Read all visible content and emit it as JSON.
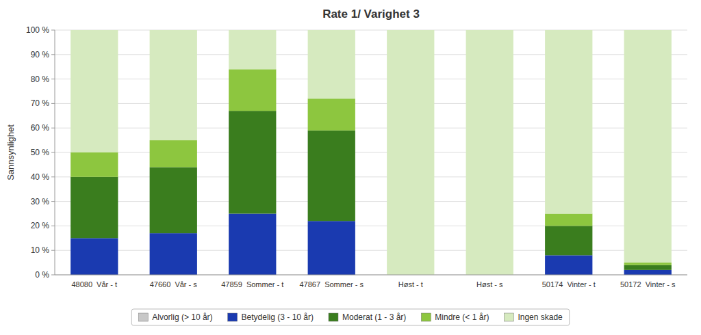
{
  "chart_data": {
    "type": "bar",
    "stacked": true,
    "title": "Rate 1/ Varighet 3",
    "y_label": "Sannsynlighet",
    "categories": [
      "48080  Vår - t",
      "47660  Vår - s",
      "47859  Sommer - t",
      "47867  Sommer - s",
      "Høst - t",
      "Høst - s",
      "50174  Vinter - t",
      "50172  Vinter - s"
    ],
    "series": [
      {
        "name": "Alvorlig (> 10 år)",
        "color": "#c8c8c8",
        "values": [
          0,
          0,
          0,
          0,
          0,
          0,
          0,
          0
        ]
      },
      {
        "name": "Betydelig (3 - 10 år)",
        "color": "#1a3ab0",
        "values": [
          15,
          17,
          25,
          22,
          0,
          0,
          8,
          2
        ]
      },
      {
        "name": "Moderat (1 - 3 år)",
        "color": "#3a7d1e",
        "values": [
          25,
          27,
          42,
          37,
          0,
          0,
          12,
          2
        ]
      },
      {
        "name": "Mindre (< 1 år)",
        "color": "#8dc63f",
        "values": [
          10,
          11,
          17,
          13,
          0,
          0,
          5,
          1
        ]
      },
      {
        "name": "Ingen skade",
        "color": "#d6eabf",
        "values": [
          50,
          45,
          16,
          28,
          100,
          100,
          75,
          95
        ]
      }
    ],
    "ylim": [
      0,
      100
    ],
    "yticks": [
      {
        "value": 0,
        "label": "0 %"
      },
      {
        "value": 10,
        "label": "10 %"
      },
      {
        "value": 20,
        "label": "20 %"
      },
      {
        "value": 30,
        "label": "30 %"
      },
      {
        "value": 40,
        "label": "40 %"
      },
      {
        "value": 50,
        "label": "50 %"
      },
      {
        "value": 60,
        "label": "60 %"
      },
      {
        "value": 70,
        "label": "70 %"
      },
      {
        "value": 80,
        "label": "80 %"
      },
      {
        "value": 90,
        "label": "90 %"
      },
      {
        "value": 100,
        "label": "100 %"
      }
    ],
    "grid": true,
    "legend": "bottom"
  }
}
